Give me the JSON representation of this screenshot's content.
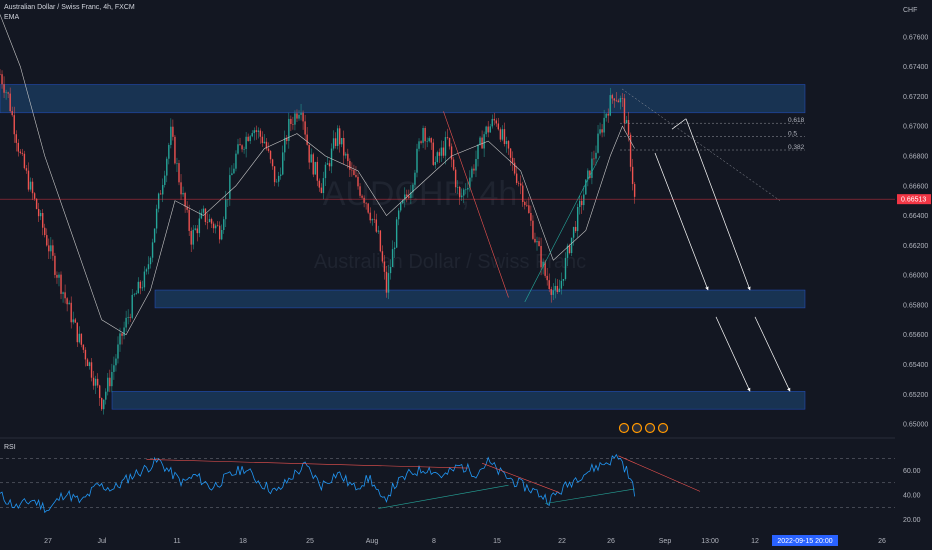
{
  "header": {
    "symbol_line": "Australian Dollar / Swiss Franc, 4h, FXCM",
    "ema_label": "EMA",
    "currency": "CHF",
    "watermark_symbol": "AUDCHF, 4h",
    "watermark_name": "Australian Dollar / Swiss Franc"
  },
  "rsi_panel": {
    "label": "RSI"
  },
  "colors": {
    "background": "#131722",
    "up_candle": "#26a69a",
    "down_candle": "#ef5350",
    "zone_fill": "#1e4a7a",
    "zone_border": "#2962ff",
    "rsi_line": "#2196f3",
    "ema_line": "#c8c8c8",
    "last_price": "#f23645",
    "date_badge": "#2962ff"
  },
  "chart_data": {
    "type": "candlestick",
    "price_axis": {
      "ticks": [
        "0.67600",
        "0.67400",
        "0.67200",
        "0.67000",
        "0.66800",
        "0.66600",
        "0.66400",
        "0.66200",
        "0.66000",
        "0.65800",
        "0.65600",
        "0.65400",
        "0.65200",
        "0.65000"
      ],
      "last_price_label": "0.66513",
      "ylim": [
        0.6492,
        0.6778
      ]
    },
    "time_axis": {
      "ticks": [
        "27",
        "Jul",
        "11",
        "18",
        "25",
        "Aug",
        "8",
        "15",
        "22",
        "26",
        "Sep",
        "13:00",
        "12",
        "19",
        "26"
      ],
      "highlight": "2022-09-15  20:00"
    },
    "zones": [
      {
        "top": 0.6728,
        "bottom": 0.6709
      },
      {
        "top": 0.659,
        "bottom": 0.6578
      },
      {
        "top": 0.6522,
        "bottom": 0.651
      }
    ],
    "fib_levels": [
      {
        "label": "0.618",
        "price": 0.6702
      },
      {
        "label": "0.5",
        "price": 0.6693
      },
      {
        "label": "0.382",
        "price": 0.6684
      }
    ],
    "rsi_axis": {
      "ticks": [
        "60.00",
        "40.00",
        "20.00"
      ],
      "levels": [
        70,
        50,
        30
      ],
      "ylim": [
        18,
        80
      ]
    },
    "price_path": [
      {
        "t": 0,
        "p": 0.6735
      },
      {
        "t": 4,
        "p": 0.672
      },
      {
        "t": 10,
        "p": 0.668
      },
      {
        "t": 18,
        "p": 0.6645
      },
      {
        "t": 26,
        "p": 0.661
      },
      {
        "t": 32,
        "p": 0.6585
      },
      {
        "t": 38,
        "p": 0.656
      },
      {
        "t": 44,
        "p": 0.654
      },
      {
        "t": 50,
        "p": 0.6515
      },
      {
        "t": 54,
        "p": 0.653
      },
      {
        "t": 60,
        "p": 0.656
      },
      {
        "t": 66,
        "p": 0.6585
      },
      {
        "t": 72,
        "p": 0.66
      },
      {
        "t": 78,
        "p": 0.665
      },
      {
        "t": 84,
        "p": 0.6695
      },
      {
        "t": 88,
        "p": 0.6665
      },
      {
        "t": 94,
        "p": 0.6625
      },
      {
        "t": 100,
        "p": 0.664
      },
      {
        "t": 108,
        "p": 0.663
      },
      {
        "t": 116,
        "p": 0.668
      },
      {
        "t": 124,
        "p": 0.67
      },
      {
        "t": 130,
        "p": 0.669
      },
      {
        "t": 136,
        "p": 0.666
      },
      {
        "t": 142,
        "p": 0.67
      },
      {
        "t": 148,
        "p": 0.6715
      },
      {
        "t": 152,
        "p": 0.668
      },
      {
        "t": 158,
        "p": 0.666
      },
      {
        "t": 166,
        "p": 0.6695
      },
      {
        "t": 172,
        "p": 0.667
      },
      {
        "t": 180,
        "p": 0.665
      },
      {
        "t": 186,
        "p": 0.6625
      },
      {
        "t": 190,
        "p": 0.659
      },
      {
        "t": 196,
        "p": 0.664
      },
      {
        "t": 202,
        "p": 0.666
      },
      {
        "t": 208,
        "p": 0.67
      },
      {
        "t": 214,
        "p": 0.6675
      },
      {
        "t": 220,
        "p": 0.669
      },
      {
        "t": 226,
        "p": 0.665
      },
      {
        "t": 232,
        "p": 0.667
      },
      {
        "t": 238,
        "p": 0.6695
      },
      {
        "t": 244,
        "p": 0.6705
      },
      {
        "t": 250,
        "p": 0.668
      },
      {
        "t": 256,
        "p": 0.666
      },
      {
        "t": 262,
        "p": 0.663
      },
      {
        "t": 268,
        "p": 0.66
      },
      {
        "t": 274,
        "p": 0.6585
      },
      {
        "t": 280,
        "p": 0.662
      },
      {
        "t": 286,
        "p": 0.665
      },
      {
        "t": 292,
        "p": 0.668
      },
      {
        "t": 298,
        "p": 0.671
      },
      {
        "t": 302,
        "p": 0.6722
      },
      {
        "t": 306,
        "p": 0.6715
      },
      {
        "t": 309,
        "p": 0.669
      },
      {
        "t": 312,
        "p": 0.6651
      }
    ],
    "rsi_path": [
      {
        "t": 0,
        "r": 40
      },
      {
        "t": 8,
        "r": 30
      },
      {
        "t": 16,
        "r": 36
      },
      {
        "t": 24,
        "r": 28
      },
      {
        "t": 32,
        "r": 42
      },
      {
        "t": 40,
        "r": 34
      },
      {
        "t": 48,
        "r": 48
      },
      {
        "t": 56,
        "r": 45
      },
      {
        "t": 64,
        "r": 55
      },
      {
        "t": 72,
        "r": 62
      },
      {
        "t": 78,
        "r": 68
      },
      {
        "t": 84,
        "r": 58
      },
      {
        "t": 90,
        "r": 50
      },
      {
        "t": 96,
        "r": 56
      },
      {
        "t": 104,
        "r": 46
      },
      {
        "t": 112,
        "r": 55
      },
      {
        "t": 120,
        "r": 62
      },
      {
        "t": 128,
        "r": 50
      },
      {
        "t": 136,
        "r": 42
      },
      {
        "t": 144,
        "r": 56
      },
      {
        "t": 150,
        "r": 64
      },
      {
        "t": 158,
        "r": 48
      },
      {
        "t": 166,
        "r": 58
      },
      {
        "t": 174,
        "r": 46
      },
      {
        "t": 182,
        "r": 54
      },
      {
        "t": 188,
        "r": 34
      },
      {
        "t": 194,
        "r": 48
      },
      {
        "t": 202,
        "r": 58
      },
      {
        "t": 210,
        "r": 62
      },
      {
        "t": 218,
        "r": 55
      },
      {
        "t": 226,
        "r": 64
      },
      {
        "t": 234,
        "r": 58
      },
      {
        "t": 240,
        "r": 67
      },
      {
        "t": 246,
        "r": 58
      },
      {
        "t": 254,
        "r": 50
      },
      {
        "t": 262,
        "r": 44
      },
      {
        "t": 270,
        "r": 36
      },
      {
        "t": 276,
        "r": 44
      },
      {
        "t": 284,
        "r": 55
      },
      {
        "t": 292,
        "r": 62
      },
      {
        "t": 300,
        "r": 68
      },
      {
        "t": 304,
        "r": 72
      },
      {
        "t": 308,
        "r": 60
      },
      {
        "t": 312,
        "r": 43
      }
    ],
    "ema_path": [
      {
        "t": 0,
        "p": 0.6775
      },
      {
        "t": 10,
        "p": 0.674
      },
      {
        "t": 22,
        "p": 0.668
      },
      {
        "t": 36,
        "p": 0.6625
      },
      {
        "t": 50,
        "p": 0.657
      },
      {
        "t": 62,
        "p": 0.656
      },
      {
        "t": 74,
        "p": 0.659
      },
      {
        "t": 86,
        "p": 0.665
      },
      {
        "t": 100,
        "p": 0.664
      },
      {
        "t": 116,
        "p": 0.666
      },
      {
        "t": 130,
        "p": 0.6685
      },
      {
        "t": 146,
        "p": 0.6695
      },
      {
        "t": 160,
        "p": 0.668
      },
      {
        "t": 176,
        "p": 0.667
      },
      {
        "t": 190,
        "p": 0.664
      },
      {
        "t": 206,
        "p": 0.666
      },
      {
        "t": 222,
        "p": 0.668
      },
      {
        "t": 240,
        "p": 0.669
      },
      {
        "t": 256,
        "p": 0.667
      },
      {
        "t": 272,
        "p": 0.661
      },
      {
        "t": 288,
        "p": 0.663
      },
      {
        "t": 300,
        "p": 0.668
      },
      {
        "t": 306,
        "p": 0.67
      },
      {
        "t": 312,
        "p": 0.6685
      }
    ]
  }
}
